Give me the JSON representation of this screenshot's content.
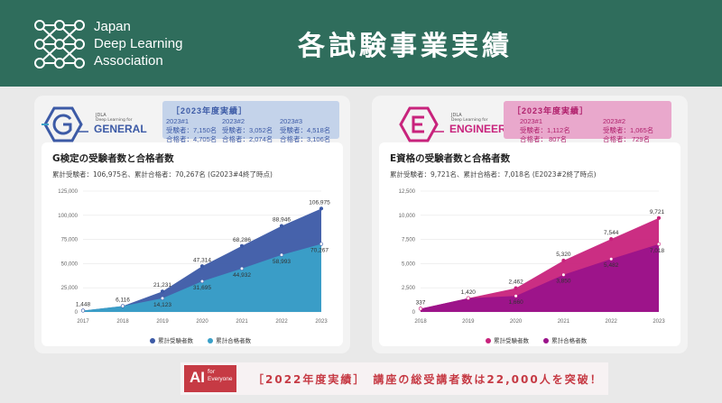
{
  "header": {
    "org_line1": "Japan",
    "org_line2": "Deep Learning",
    "org_line3": "Association",
    "title": "各試験事業実績"
  },
  "colors": {
    "header_bg": "#2f6d5c",
    "general_accent": "#3c5aa6",
    "general_light": "#3aa0c8",
    "engineer_accent": "#c8237c",
    "engineer_dark": "#9a138a",
    "banner_red": "#c63a44"
  },
  "left": {
    "badge": {
      "small1": "JDLA",
      "small2": "Deep Learning for",
      "big": "GENERAL",
      "icon": "g-hexagon-icon"
    },
    "summary": {
      "title": "［2023年度実績］",
      "cols": [
        {
          "name": "2023#1",
          "exam": "受験者：7,150名",
          "pass": "合格者：4,705名"
        },
        {
          "name": "2023#2",
          "exam": "受験者：3,052名",
          "pass": "合格者：2,074名"
        },
        {
          "name": "2023#3",
          "exam": "受験者：4,518名",
          "pass": "合格者：3,106名"
        }
      ]
    },
    "chart_title": "G検定の受験者数と合格者数",
    "chart_sub": "累計受験者：106,975名、累計合格者：70,267名 (G2023#4終了時点)",
    "legend": [
      "累計受験者数",
      "累計合格者数"
    ]
  },
  "right": {
    "badge": {
      "small1": "JDLA",
      "small2": "Deep Learning for",
      "big": "ENGINEER",
      "icon": "e-hexagon-icon"
    },
    "summary": {
      "title": "［2023年度実績］",
      "cols": [
        {
          "name": "2023#1",
          "exam": "受験者：1,112名",
          "pass": "合格者：  807名"
        },
        {
          "name": "2023#2",
          "exam": "受験者：1,065名",
          "pass": "合格者：  729名"
        }
      ]
    },
    "chart_title": "E資格の受験者数と合格者数",
    "chart_sub": "累計受験者：9,721名、累計合格者：7,018名 (E2023#2終了時点)",
    "legend": [
      "累計受験者数",
      "累計合格者数"
    ]
  },
  "banner": {
    "logo_ai": "AI",
    "logo_for": "for",
    "logo_everyone": "Everyone",
    "text": "［2022年度実績］　講座の総受講者数は22,000人を突破！"
  },
  "chart_data": [
    {
      "type": "area",
      "title": "G検定の受験者数と合格者数",
      "x": [
        "2017",
        "2018",
        "2019",
        "2020",
        "2021",
        "2022",
        "2023"
      ],
      "ylim": [
        0,
        125000
      ],
      "yticks": [
        0,
        25000,
        50000,
        75000,
        100000,
        125000
      ],
      "ytick_labels": [
        "0",
        "25,000",
        "50,000",
        "75,000",
        "100,000",
        "125,000"
      ],
      "series": [
        {
          "name": "累計受験者数",
          "values": [
            1448,
            6116,
            21231,
            47314,
            68286,
            88946,
            106975
          ],
          "labels": [
            "1,448",
            "6,116",
            "21,231",
            "47,314",
            "68,286",
            "88,946",
            "106,975"
          ]
        },
        {
          "name": "累計合格者数",
          "values": [
            1448,
            6116,
            14123,
            31695,
            44932,
            58993,
            70267
          ],
          "labels": [
            "",
            "",
            "14,123",
            "31,695",
            "44,932",
            "58,993",
            "70,267"
          ]
        }
      ],
      "legend": "bottom"
    },
    {
      "type": "area",
      "title": "E資格の受験者数と合格者数",
      "x": [
        "2018",
        "2019",
        "2020",
        "2021",
        "2022",
        "2023"
      ],
      "ylim": [
        0,
        12500
      ],
      "yticks": [
        0,
        2500,
        5000,
        7500,
        10000,
        12500
      ],
      "ytick_labels": [
        "0",
        "2,500",
        "5,000",
        "7,500",
        "10,000",
        "12,500"
      ],
      "series": [
        {
          "name": "累計受験者数",
          "values": [
            337,
            1420,
            2462,
            5320,
            7544,
            9721
          ],
          "labels": [
            "337",
            "1,420",
            "2,462",
            "5,320",
            "7,544",
            "9,721"
          ]
        },
        {
          "name": "累計合格者数",
          "values": [
            337,
            1420,
            1660,
            3850,
            5482,
            7018
          ],
          "labels": [
            "",
            "",
            "1,660",
            "3,850",
            "5,482",
            "7,018"
          ]
        }
      ],
      "legend": "bottom"
    }
  ]
}
